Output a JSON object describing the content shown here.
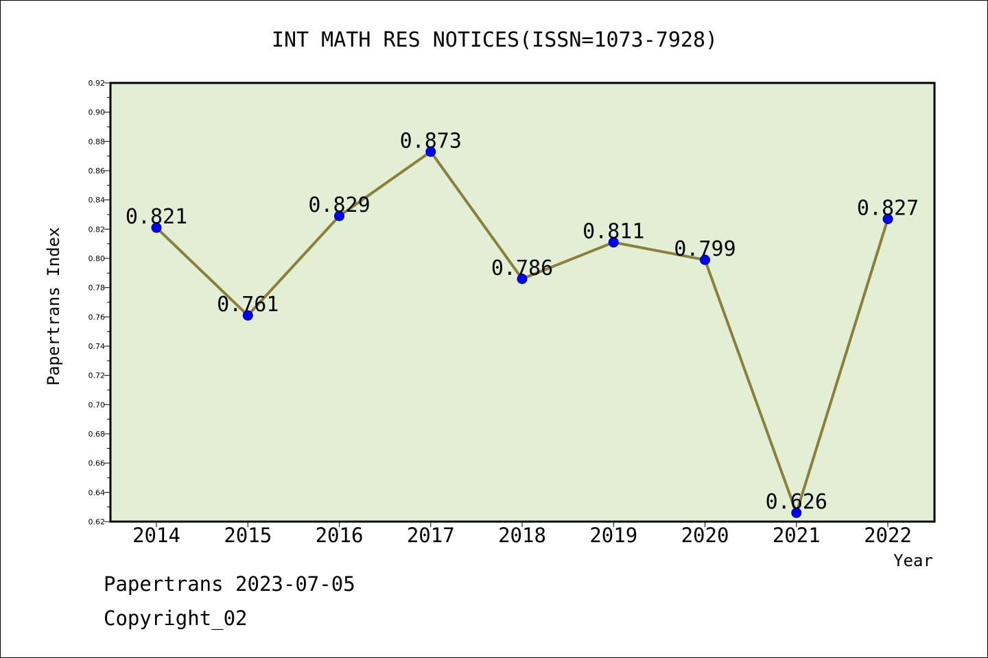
{
  "chart_data": {
    "type": "line",
    "title": "INT MATH RES NOTICES(ISSN=1073-7928)",
    "xlabel": "Year",
    "ylabel": "Papertrans Index",
    "categories": [
      "2014",
      "2015",
      "2016",
      "2017",
      "2018",
      "2019",
      "2020",
      "2021",
      "2022"
    ],
    "values": [
      0.821,
      0.761,
      0.829,
      0.873,
      0.786,
      0.811,
      0.799,
      0.626,
      0.827
    ],
    "data_labels": [
      "0.821",
      "0.761",
      "0.829",
      "0.873",
      "0.786",
      "0.811",
      "0.799",
      "0.626",
      "0.827"
    ],
    "ylim": [
      0.62,
      0.92
    ],
    "y_ticks": [
      "0.62",
      "0.64",
      "0.66",
      "0.68",
      "0.70",
      "0.72",
      "0.74",
      "0.76",
      "0.78",
      "0.80",
      "0.82",
      "0.84",
      "0.86",
      "0.88",
      "0.90",
      "0.92"
    ],
    "grid": false,
    "legend": "none",
    "colors": {
      "plot_background": "#e2efd5",
      "line": "#8c7f3a",
      "marker": "#0000ff"
    }
  },
  "footer": {
    "date_text": "Papertrans 2023-07-05",
    "copyright_text": "Copyright_02"
  }
}
